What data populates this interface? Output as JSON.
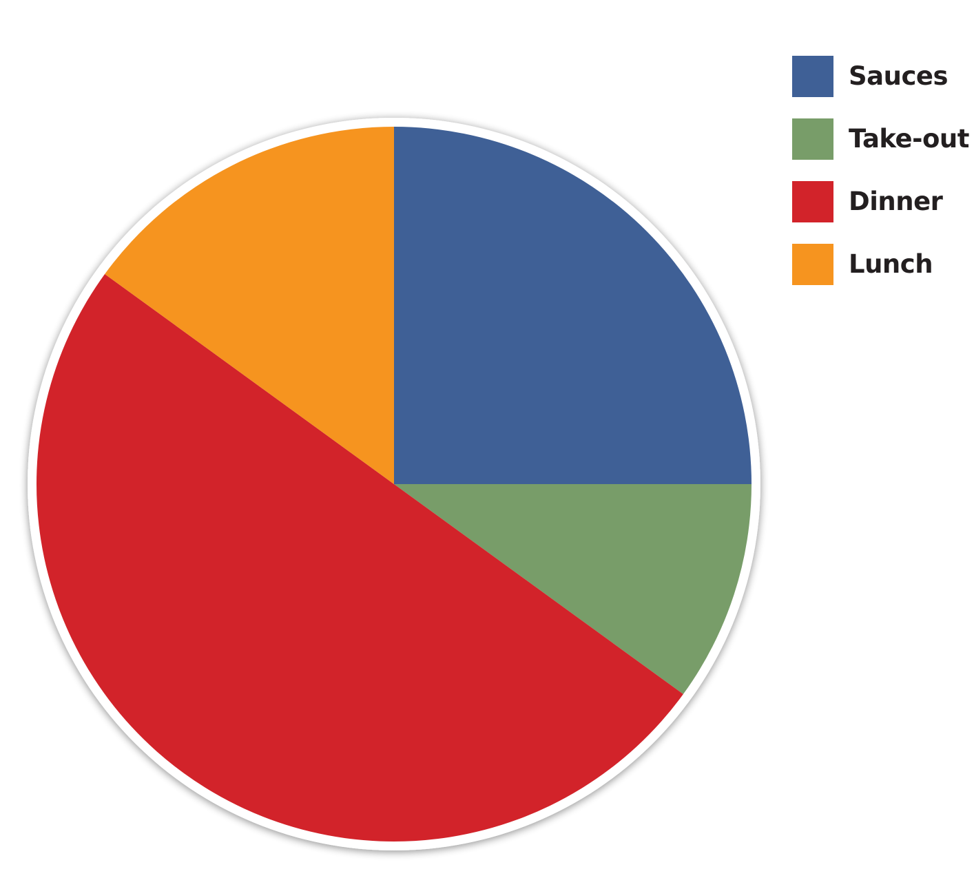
{
  "chart_data": {
    "type": "pie",
    "title": "",
    "slices": [
      {
        "label": "Sauces",
        "value": 25,
        "color": "#3f6096"
      },
      {
        "label": "Take-out",
        "value": 10,
        "color": "#789d69"
      },
      {
        "label": "Dinner",
        "value": 50,
        "color": "#d2232a"
      },
      {
        "label": "Lunch",
        "value": 15,
        "color": "#f6941f"
      }
    ],
    "legend": {
      "position": "top-right",
      "items": [
        {
          "label": "Sauces",
          "color": "#3f6096"
        },
        {
          "label": "Take-out",
          "color": "#789d69"
        },
        {
          "label": "Dinner",
          "color": "#d2232a"
        },
        {
          "label": "Lunch",
          "color": "#f6941f"
        }
      ]
    }
  }
}
